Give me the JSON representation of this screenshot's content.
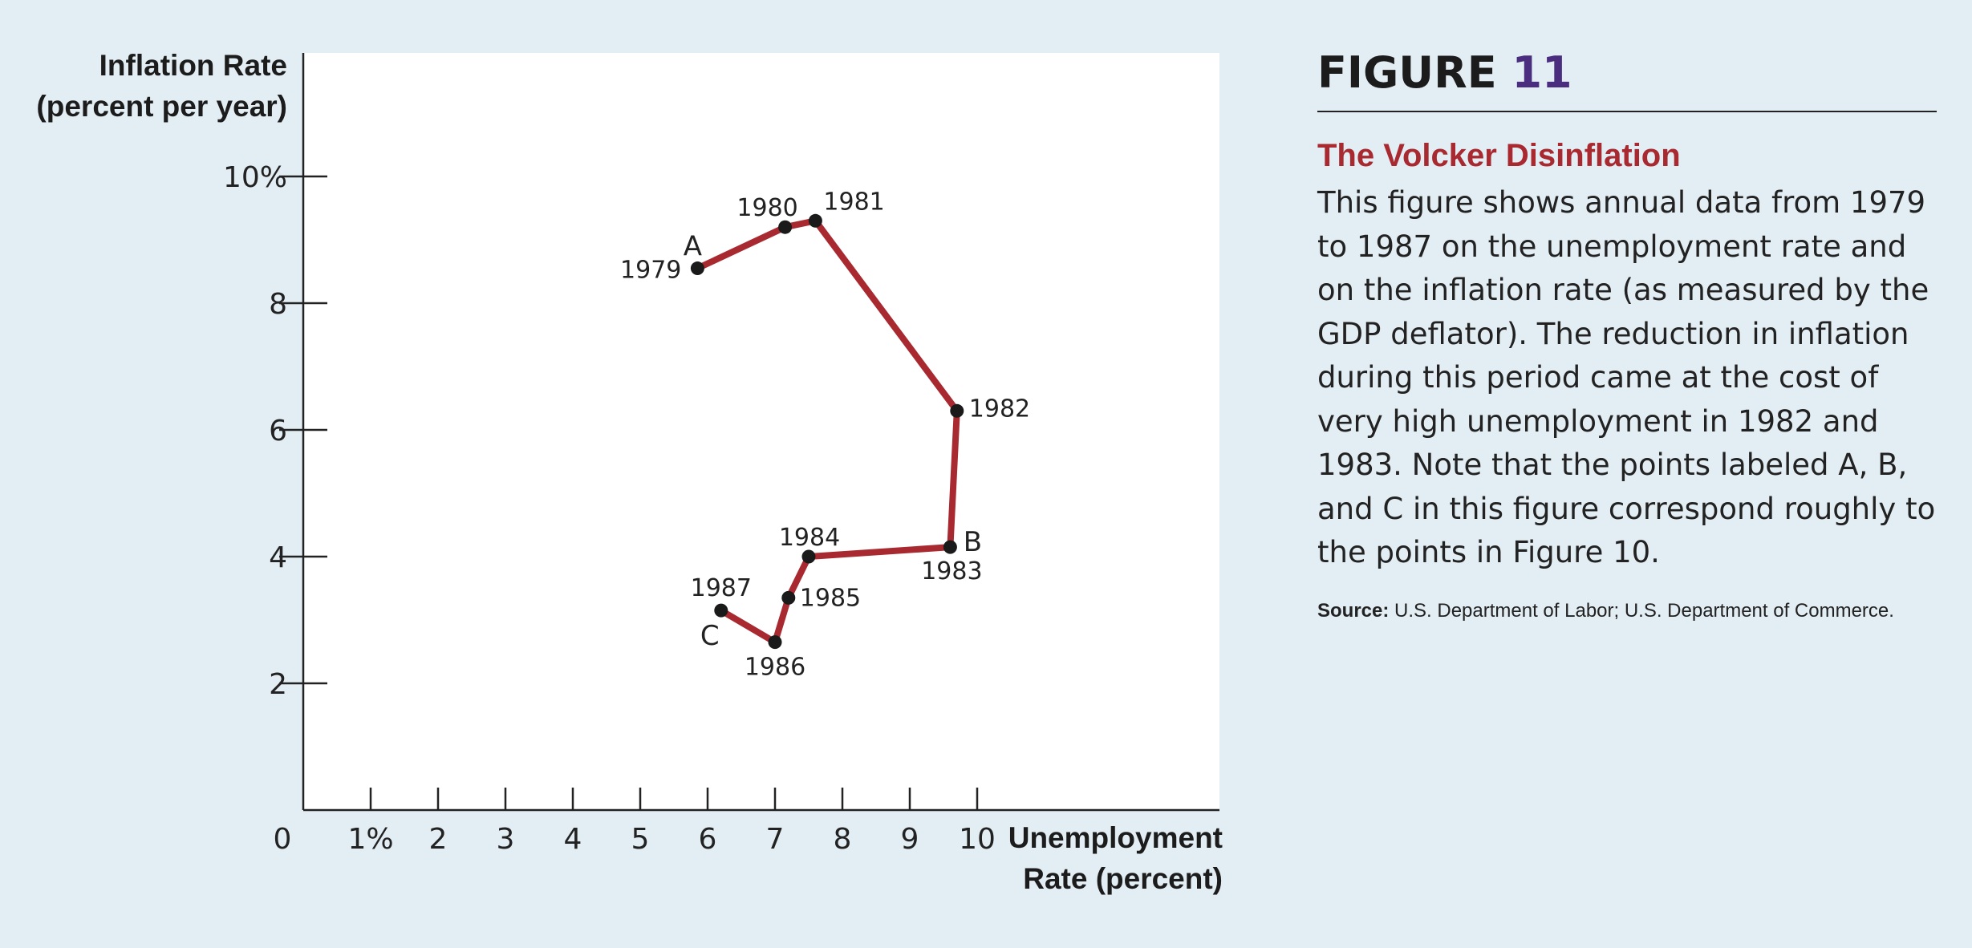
{
  "figure": {
    "label": "FIGURE",
    "number": "11",
    "title": "The Volcker Disinflation",
    "caption": "This figure shows annual data from 1979 to 1987 on the unemployment rate and on the inflation rate (as measured by the GDP deflator). The reduction in inflation during this period came at the cost of very high unemployment in 1982 and 1983. Note that the points labeled A, B, and C in this figure correspond roughly to the points in Figure 10.",
    "source_label": "Source:",
    "source_text": "U.S. Department of Labor; U.S. Department of Commerce."
  },
  "chart_data": {
    "type": "line",
    "ylabel": [
      "Inflation Rate",
      "(percent per year)"
    ],
    "xlabel": [
      "Unemployment",
      "Rate (percent)"
    ],
    "origin_label": "0",
    "xlim": [
      0,
      13.5
    ],
    "ylim": [
      0,
      12
    ],
    "x_ticks": [
      1,
      2,
      3,
      4,
      5,
      6,
      7,
      8,
      9,
      10
    ],
    "x_tick_labels": [
      "1%",
      "2",
      "3",
      "4",
      "5",
      "6",
      "7",
      "8",
      "9",
      "10"
    ],
    "y_ticks": [
      2,
      4,
      6,
      8,
      10
    ],
    "y_tick_labels": [
      "2",
      "4",
      "6",
      "8",
      "10%"
    ],
    "grid": false,
    "line_color": "#a8292f",
    "marker_color": "#1a1a1a",
    "points": [
      {
        "year": "1979",
        "x": 5.85,
        "y": 8.55,
        "letter": "A"
      },
      {
        "year": "1980",
        "x": 7.15,
        "y": 9.2
      },
      {
        "year": "1981",
        "x": 7.6,
        "y": 9.3
      },
      {
        "year": "1982",
        "x": 9.7,
        "y": 6.3
      },
      {
        "year": "1983",
        "x": 9.6,
        "y": 4.15,
        "letter": "B"
      },
      {
        "year": "1984",
        "x": 7.5,
        "y": 4.0
      },
      {
        "year": "1985",
        "x": 7.2,
        "y": 3.35
      },
      {
        "year": "1986",
        "x": 7.0,
        "y": 2.65
      },
      {
        "year": "1987",
        "x": 6.2,
        "y": 3.15,
        "letter": "C"
      }
    ]
  }
}
